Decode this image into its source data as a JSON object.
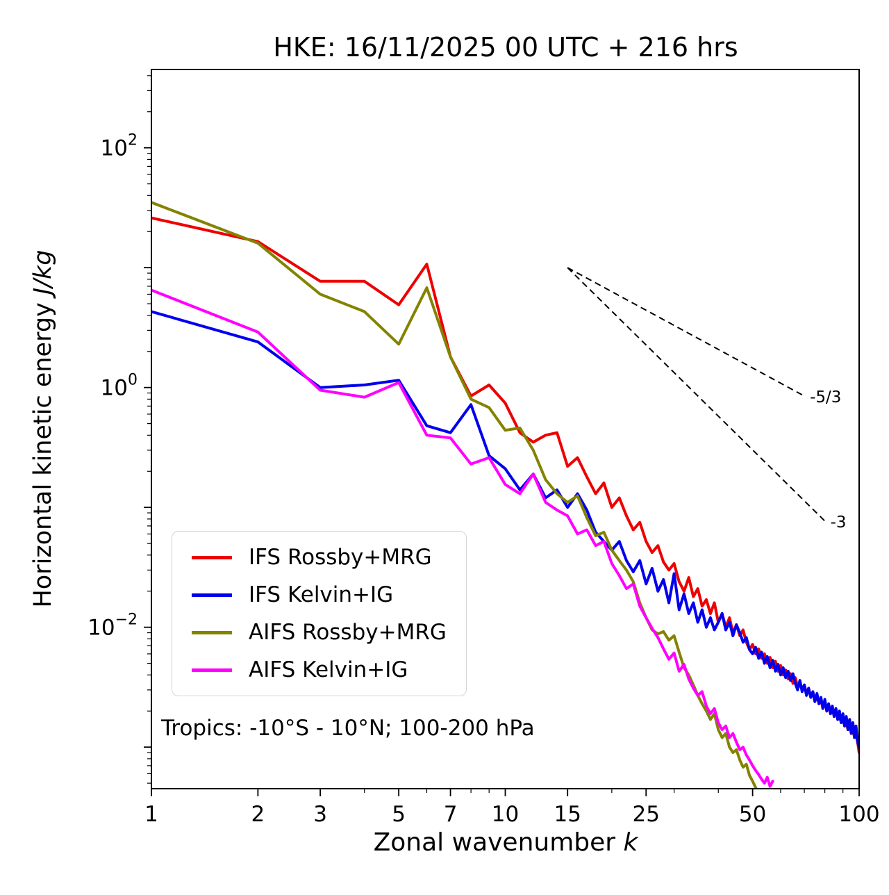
{
  "chart_data": {
    "type": "line",
    "title": "HKE: 16/11/2025 00 UTC + 216 hrs",
    "xlabel_text": "Zonal wavenumber ",
    "xlabel_var": "k",
    "ylabel_text": "Horizontal kinetic energy ",
    "ylabel_var": "J/kg",
    "annotation": "Tropics: -10°S - 10°N; 100-200 hPa",
    "x_scale": "log",
    "y_scale": "log",
    "xlim": [
      1,
      100
    ],
    "ylim": [
      0.00045,
      450
    ],
    "x_ticks": [
      1,
      2,
      3,
      5,
      7,
      10,
      15,
      25,
      50,
      100
    ],
    "y_tick_exponents": [
      2,
      0,
      -2
    ],
    "grid": false,
    "legend_position": "lower left inside",
    "reference_lines": [
      {
        "label": "-5/3",
        "x": [
          15,
          70
        ],
        "y": [
          10,
          0.85
        ]
      },
      {
        "label": "-3",
        "x": [
          15,
          80
        ],
        "y": [
          10,
          0.077
        ]
      }
    ],
    "series": [
      {
        "id": "ifs-rossby-mrg",
        "name": "IFS Rossby+MRG",
        "color": "#ee0000",
        "k_start": 1,
        "values": [
          26,
          16.5,
          7.7,
          7.7,
          4.9,
          10.7,
          1.8,
          0.85,
          1.05,
          0.74,
          0.42,
          0.35,
          0.4,
          0.42,
          0.22,
          0.26,
          0.18,
          0.13,
          0.16,
          0.1,
          0.12,
          0.085,
          0.065,
          0.075,
          0.052,
          0.042,
          0.048,
          0.035,
          0.03,
          0.034,
          0.024,
          0.02,
          0.026,
          0.018,
          0.021,
          0.015,
          0.017,
          0.013,
          0.016,
          0.011,
          0.013,
          0.01,
          0.012,
          0.009,
          0.0105,
          0.0085,
          0.0095,
          0.0075,
          0.0065,
          0.0072,
          0.006,
          0.0066,
          0.0055,
          0.006,
          0.005,
          0.0056,
          0.0046,
          0.0052,
          0.0043,
          0.0048,
          0.004,
          0.0044,
          0.0037,
          0.0041,
          0.0034,
          0.0038,
          0.0032,
          0.0035,
          0.003,
          0.0033,
          0.0028,
          0.0031,
          0.0026,
          0.0029,
          0.0024,
          0.0027,
          0.0023,
          0.0025,
          0.0021,
          0.0024,
          0.002,
          0.0022,
          0.0019,
          0.0021,
          0.0018,
          0.002,
          0.0017,
          0.0018,
          0.0016,
          0.0017,
          0.0015,
          0.0016,
          0.0014,
          0.0015,
          0.0013,
          0.0014,
          0.0012,
          0.0013,
          0.0011,
          0.0009
        ]
      },
      {
        "id": "ifs-kelvin-ig",
        "name": "IFS Kelvin+IG",
        "color": "#0000ee",
        "k_start": 1,
        "values": [
          4.3,
          2.4,
          1.0,
          1.05,
          1.15,
          0.48,
          0.42,
          0.72,
          0.27,
          0.21,
          0.14,
          0.19,
          0.12,
          0.14,
          0.1,
          0.13,
          0.095,
          0.062,
          0.052,
          0.044,
          0.052,
          0.036,
          0.029,
          0.036,
          0.023,
          0.031,
          0.02,
          0.025,
          0.016,
          0.028,
          0.014,
          0.019,
          0.013,
          0.016,
          0.011,
          0.014,
          0.01,
          0.012,
          0.0095,
          0.011,
          0.013,
          0.0095,
          0.011,
          0.0085,
          0.0105,
          0.009,
          0.0075,
          0.0082,
          0.0065,
          0.006,
          0.0068,
          0.0055,
          0.0062,
          0.005,
          0.0057,
          0.0046,
          0.0053,
          0.0043,
          0.0049,
          0.004,
          0.0046,
          0.0038,
          0.0043,
          0.0036,
          0.0041,
          0.0034,
          0.003,
          0.0036,
          0.0029,
          0.0033,
          0.0027,
          0.0031,
          0.0026,
          0.0029,
          0.0024,
          0.0028,
          0.0023,
          0.0026,
          0.0021,
          0.0025,
          0.002,
          0.0023,
          0.0019,
          0.0022,
          0.0018,
          0.0021,
          0.0017,
          0.002,
          0.0016,
          0.0019,
          0.0015,
          0.0018,
          0.0014,
          0.0017,
          0.0013,
          0.0016,
          0.0012,
          0.0015,
          0.0011,
          0.001
        ]
      },
      {
        "id": "aifs-rossby-mrg",
        "name": "AIFS Rossby+MRG",
        "color": "#838300",
        "k_start": 1,
        "values": [
          35,
          16,
          6.0,
          4.3,
          2.3,
          6.8,
          1.8,
          0.8,
          0.68,
          0.44,
          0.46,
          0.3,
          0.17,
          0.13,
          0.11,
          0.125,
          0.082,
          0.058,
          0.062,
          0.044,
          0.036,
          0.03,
          0.024,
          0.016,
          0.012,
          0.0095,
          0.0088,
          0.0092,
          0.0078,
          0.0085,
          0.0062,
          0.0046,
          0.004,
          0.0033,
          0.0027,
          0.0023,
          0.002,
          0.0017,
          0.0019,
          0.0014,
          0.0012,
          0.0013,
          0.001,
          0.0009,
          0.00095,
          0.00078,
          0.00068,
          0.00072,
          0.00058,
          0.00052,
          0.00046,
          0.00042,
          0.00044,
          0.00036,
          0.00031,
          0.00027,
          0.00024,
          0.00022
        ]
      },
      {
        "id": "aifs-kelvin-ig",
        "name": "AIFS Kelvin+IG",
        "color": "#ff00ff",
        "k_start": 1,
        "values": [
          6.5,
          2.9,
          0.95,
          0.83,
          1.1,
          0.4,
          0.38,
          0.23,
          0.26,
          0.155,
          0.13,
          0.19,
          0.11,
          0.095,
          0.085,
          0.06,
          0.065,
          0.048,
          0.052,
          0.034,
          0.027,
          0.021,
          0.023,
          0.015,
          0.012,
          0.0098,
          0.0082,
          0.0066,
          0.0054,
          0.0061,
          0.0043,
          0.0049,
          0.0037,
          0.0031,
          0.0027,
          0.0029,
          0.0022,
          0.0019,
          0.0021,
          0.0016,
          0.0014,
          0.0015,
          0.0012,
          0.0013,
          0.0011,
          0.00095,
          0.001,
          0.00086,
          0.00078,
          0.0007,
          0.00064,
          0.00059,
          0.00054,
          0.0005,
          0.00056,
          0.00047,
          0.00052
        ]
      }
    ]
  }
}
